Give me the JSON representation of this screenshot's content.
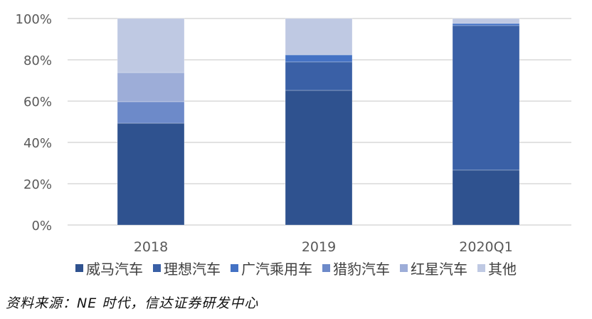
{
  "chart_data": {
    "type": "bar",
    "stacked": true,
    "percent_stacked": true,
    "title": "",
    "xlabel": "",
    "ylabel": "",
    "ylim": [
      0,
      100
    ],
    "yticks": [
      "0%",
      "20%",
      "40%",
      "60%",
      "80%",
      "100%"
    ],
    "grid": true,
    "legend_position": "bottom",
    "categories": [
      "2018",
      "2019",
      "2020Q1"
    ],
    "series": [
      {
        "name": "威马汽车",
        "color": "#2F528F",
        "values": [
          49.3,
          65.2,
          26.6
        ]
      },
      {
        "name": "理想汽车",
        "color": "#3A60A6",
        "values": [
          0,
          13.8,
          70.0
        ]
      },
      {
        "name": "广汽乘用车",
        "color": "#4472C4",
        "values": [
          0,
          3.4,
          1.0
        ]
      },
      {
        "name": "猎豹汽车",
        "color": "#6D8AC9",
        "values": [
          10.4,
          0,
          0
        ]
      },
      {
        "name": "红星汽车",
        "color": "#9DADD8",
        "values": [
          14.1,
          0,
          0
        ]
      },
      {
        "name": "其他",
        "color": "#BFC9E3",
        "values": [
          26.2,
          17.6,
          2.4
        ]
      }
    ]
  },
  "legend": {
    "items": [
      "威马汽车",
      "理想汽车",
      "广汽乘用车",
      "猎豹汽车",
      "红星汽车",
      "其他"
    ]
  },
  "source": {
    "text": "资料来源：NE 时代，信达证券研发中心"
  }
}
